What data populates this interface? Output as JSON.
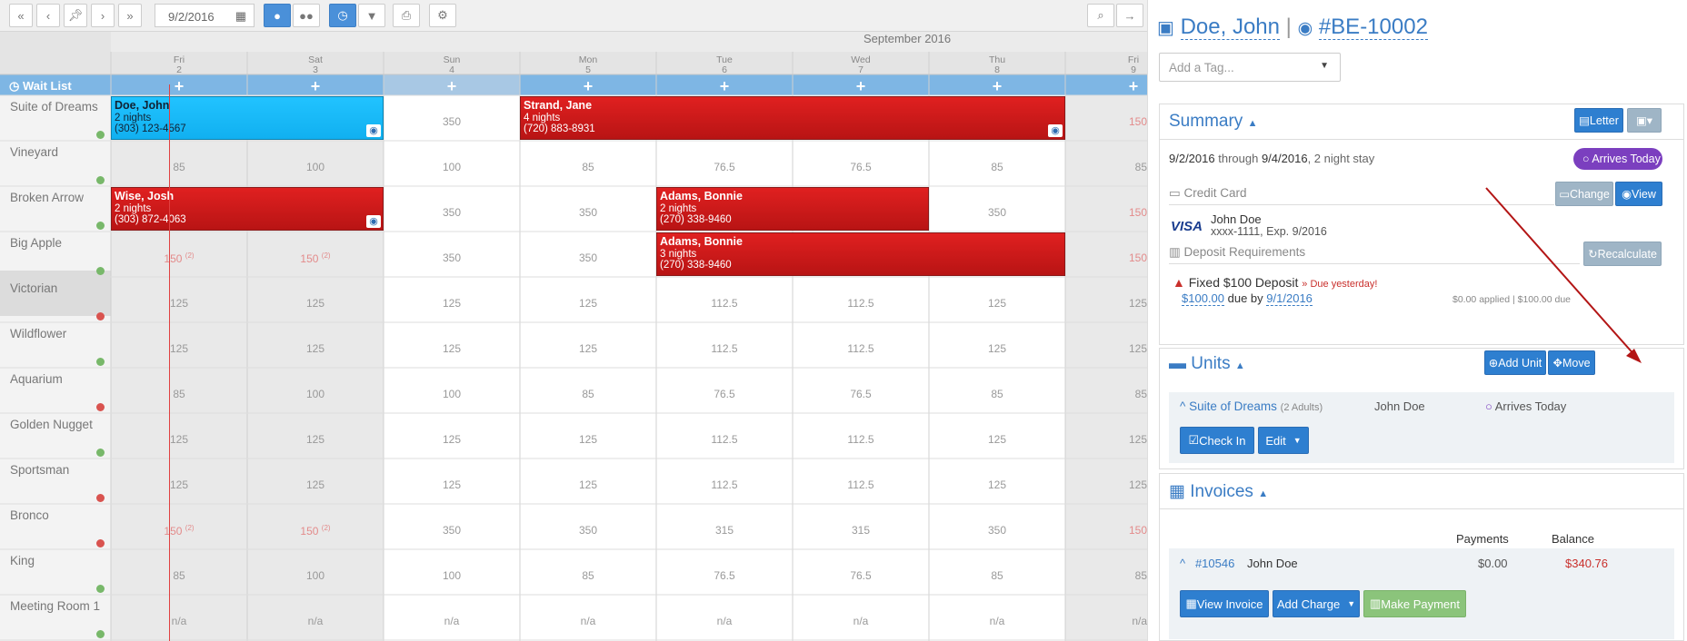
{
  "toolbar": {
    "date": "9/2/2016"
  },
  "calendar": {
    "month": "September 2016",
    "waitlist": "Wait List",
    "days": [
      {
        "dow": "Fri",
        "d": "2"
      },
      {
        "dow": "Sat",
        "d": "3"
      },
      {
        "dow": "Sun",
        "d": "4"
      },
      {
        "dow": "Mon",
        "d": "5"
      },
      {
        "dow": "Tue",
        "d": "6"
      },
      {
        "dow": "Wed",
        "d": "7"
      },
      {
        "dow": "Thu",
        "d": "8"
      },
      {
        "dow": "Fri",
        "d": "9"
      }
    ],
    "rooms": [
      {
        "name": "Suite of Dreams",
        "status": "g",
        "rates": [
          "",
          "",
          "350",
          "",
          "",
          "",
          "",
          "150"
        ]
      },
      {
        "name": "Vineyard",
        "status": "g",
        "rates": [
          "85",
          "100",
          "100",
          "85",
          "76.5",
          "76.5",
          "85",
          "85"
        ]
      },
      {
        "name": "Broken Arrow",
        "status": "g",
        "rates": [
          "",
          "",
          "350",
          "350",
          "",
          "",
          "350",
          "150"
        ]
      },
      {
        "name": "Big Apple",
        "status": "g",
        "rates": [
          "150",
          "150",
          "350",
          "350",
          "",
          "",
          "",
          "150"
        ]
      },
      {
        "name": "Victorian",
        "status": "r",
        "rates": [
          "125",
          "125",
          "125",
          "125",
          "112.5",
          "112.5",
          "125",
          "125"
        ]
      },
      {
        "name": "Wildflower",
        "status": "g",
        "rates": [
          "125",
          "125",
          "125",
          "125",
          "112.5",
          "112.5",
          "125",
          "125"
        ]
      },
      {
        "name": "Aquarium",
        "status": "r",
        "rates": [
          "85",
          "100",
          "100",
          "85",
          "76.5",
          "76.5",
          "85",
          "85"
        ]
      },
      {
        "name": "Golden Nugget",
        "status": "g",
        "rates": [
          "125",
          "125",
          "125",
          "125",
          "112.5",
          "112.5",
          "125",
          "125"
        ]
      },
      {
        "name": "Sportsman",
        "status": "r",
        "rates": [
          "125",
          "125",
          "125",
          "125",
          "112.5",
          "112.5",
          "125",
          "125"
        ]
      },
      {
        "name": "Bronco",
        "status": "r",
        "rates": [
          "150",
          "150",
          "350",
          "350",
          "315",
          "315",
          "350",
          "150"
        ]
      },
      {
        "name": "King",
        "status": "g",
        "rates": [
          "85",
          "100",
          "100",
          "85",
          "76.5",
          "76.5",
          "85",
          "85"
        ]
      },
      {
        "name": "Meeting Room 1",
        "status": "g",
        "rates": [
          "n/a",
          "n/a",
          "n/a",
          "n/a",
          "n/a",
          "n/a",
          "n/a",
          "n/a"
        ]
      }
    ],
    "min_sup": "(2)",
    "bookings": [
      {
        "name": "Doe, John",
        "nights": "2 nights",
        "phone": "(303) 123-4567"
      },
      {
        "name": "Strand, Jane",
        "nights": "4 nights",
        "phone": "(720) 883-8931"
      },
      {
        "name": "Wise, Josh",
        "nights": "2 nights",
        "phone": "(303) 872-4063"
      },
      {
        "name": "Adams, Bonnie",
        "nights": "2 nights",
        "phone": "(270) 338-9460"
      },
      {
        "name": "Adams, Bonnie",
        "nights": "3 nights",
        "phone": "(270) 338-9460"
      }
    ]
  },
  "detail": {
    "guest": "Doe, John",
    "sep": "|",
    "booking_id": "#BE-10002",
    "tag_placeholder": "Add a Tag...",
    "summary": {
      "title": "Summary",
      "letter": "Letter",
      "date_from": "9/2/2016",
      "through": "through",
      "date_to": "9/4/2016",
      "stay": ", 2 night stay",
      "status": "Arrives Today"
    },
    "card": {
      "title": "Credit Card",
      "change": "Change",
      "view": "View",
      "brand": "VISA",
      "holder": "John Doe",
      "number": "xxxx-1111, Exp. 9/2016"
    },
    "deposit": {
      "title": "Deposit Requirements",
      "recalc": "Recalculate",
      "name": "Fixed $100 Deposit",
      "due_note": "» Due yesterday!",
      "amount": "$100.00",
      "due_by": "due by",
      "due_date": "9/1/2016",
      "applied": "$0.00 applied | $100.00 due"
    },
    "units": {
      "title": "Units",
      "add": "Add Unit",
      "move": "Move",
      "unit": "Suite of Dreams",
      "adults": "(2 Adults)",
      "guest": "John Doe",
      "status": "Arrives Today",
      "checkin": "Check In",
      "edit": "Edit"
    },
    "invoices": {
      "title": "Invoices",
      "col_pay": "Payments",
      "col_bal": "Balance",
      "num": "#10546",
      "guest": "John Doe",
      "payments": "$0.00",
      "balance": "$340.76",
      "view": "View Invoice",
      "add_charge": "Add Charge",
      "pay": "Make Payment"
    }
  },
  "colors": {
    "accent": "#3a7cc4",
    "booking_red": "#d01c1c",
    "booking_cyan": "#1bbcf8",
    "header_blue": "#7eb6e4"
  }
}
